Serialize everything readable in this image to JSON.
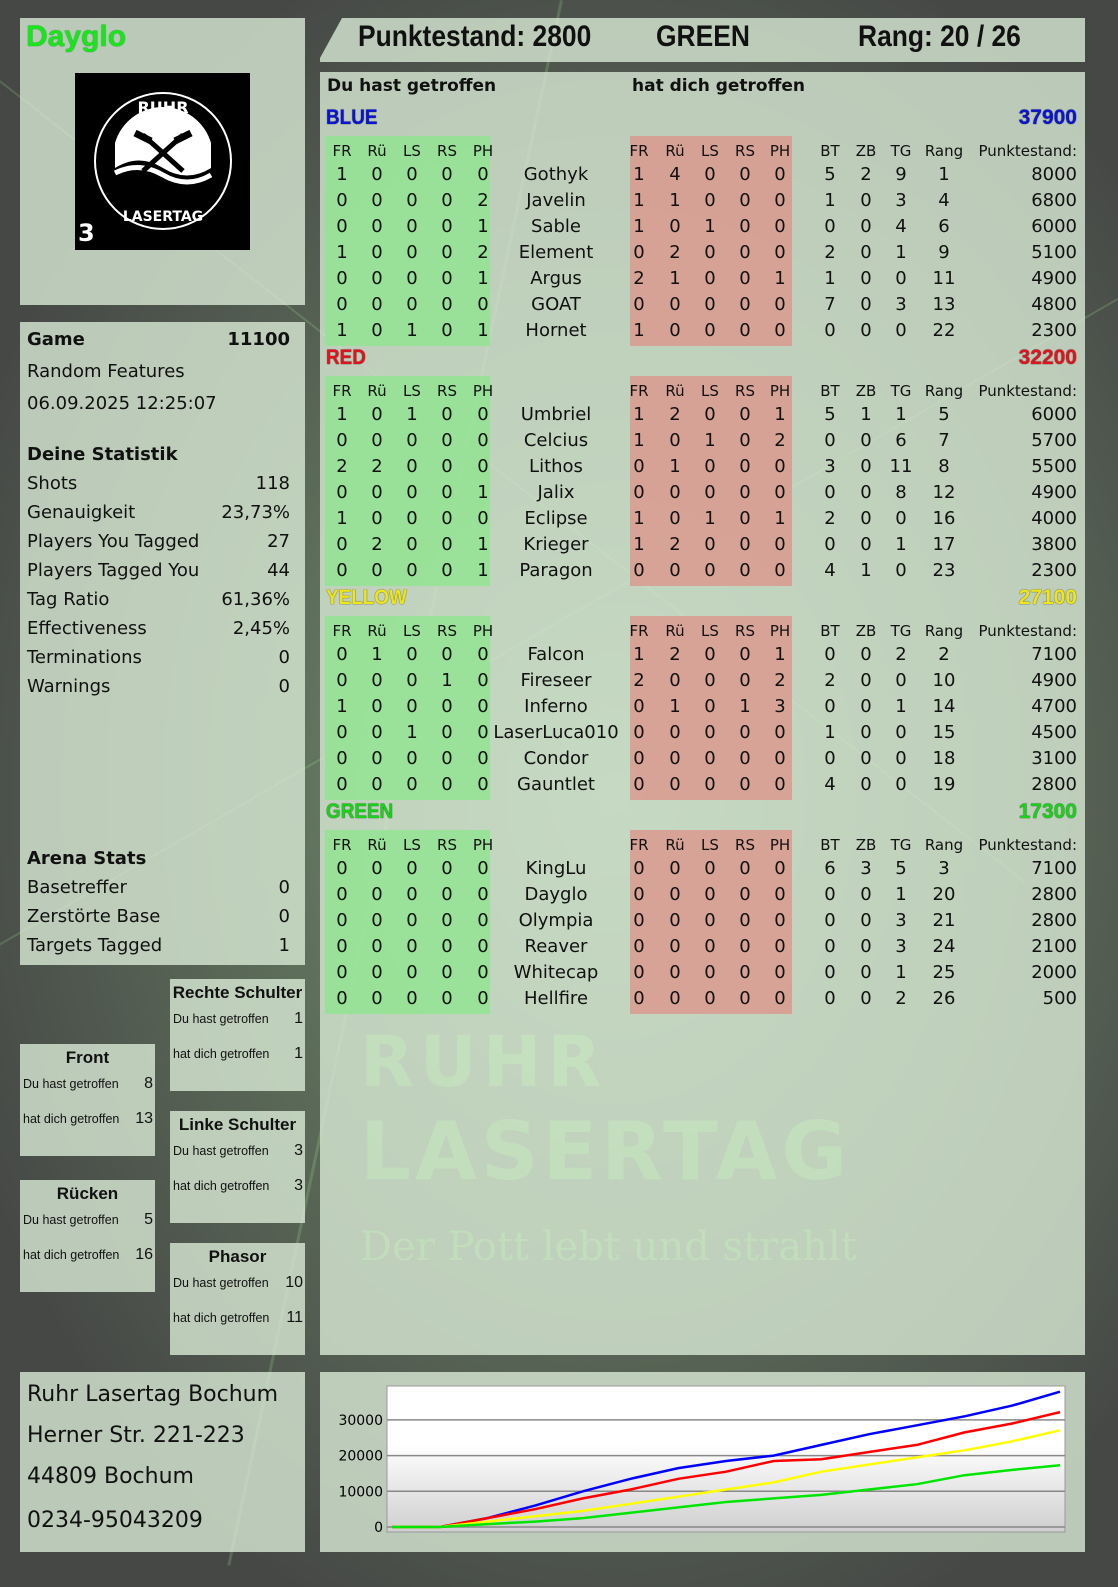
{
  "header": {
    "score_label": "Punktestand: 2800",
    "team": "GREEN",
    "rank_label": "Rang: 20 / 26"
  },
  "player": {
    "name": "Dayglo",
    "name_color": "#19e619",
    "logo_text": [
      "RUHR",
      "LASERTAG"
    ],
    "logo_badge": "3"
  },
  "game": {
    "label": "Game",
    "id": "11100",
    "mode": "Random Features",
    "datetime": "06.09.2025 12:25:07"
  },
  "my_stats": {
    "title": "Deine Statistik",
    "rows": [
      {
        "label": "Shots",
        "value": "118"
      },
      {
        "label": "Genauigkeit",
        "value": "23,73%"
      },
      {
        "label": "Players You Tagged",
        "value": "27"
      },
      {
        "label": "Players Tagged You",
        "value": "44"
      },
      {
        "label": "Tag Ratio",
        "value": "61,36%"
      },
      {
        "label": "Effectiveness",
        "value": "2,45%"
      },
      {
        "label": "Terminations",
        "value": "0"
      },
      {
        "label": "Warnings",
        "value": "0"
      }
    ]
  },
  "arena_stats": {
    "title": "Arena Stats",
    "rows": [
      {
        "label": "Basetreffer",
        "value": "0"
      },
      {
        "label": "Zerstörte Base",
        "value": "0"
      },
      {
        "label": "Targets Tagged",
        "value": "1"
      }
    ]
  },
  "hit_zones": [
    {
      "title": "Rechte Schulter",
      "you_hit_label": "Du hast getroffen",
      "you_hit": "1",
      "hit_you_label": "hat dich getroffen",
      "hit_you": "1"
    },
    {
      "title": "Front",
      "you_hit_label": "Du hast getroffen",
      "you_hit": "8",
      "hit_you_label": "hat dich getroffen",
      "hit_you": "13"
    },
    {
      "title": "Linke Schulter",
      "you_hit_label": "Du hast getroffen",
      "you_hit": "3",
      "hit_you_label": "hat dich getroffen",
      "hit_you": "3"
    },
    {
      "title": "Rücken",
      "you_hit_label": "Du hast getroffen",
      "you_hit": "5",
      "hit_you_label": "hat dich getroffen",
      "hit_you": "16"
    },
    {
      "title": "Phasor",
      "you_hit_label": "Du hast getroffen",
      "you_hit": "10",
      "hit_you_label": "hat dich getroffen",
      "hit_you": "11"
    }
  ],
  "main": {
    "you_hit_heading": "Du hast getroffen",
    "hit_you_heading": "hat dich getroffen",
    "hit_columns": [
      "FR",
      "Rü",
      "LS",
      "RS",
      "PH"
    ],
    "stat_columns": [
      "BT",
      "ZB",
      "TG",
      "Rang"
    ],
    "points_column": "Punktestand:"
  },
  "teams": [
    {
      "name": "BLUE",
      "score": "37900",
      "color": "#0a14d2",
      "players": [
        {
          "name": "Gothyk",
          "hit": [
            "1",
            "0",
            "0",
            "0",
            "0"
          ],
          "got": [
            "1",
            "4",
            "0",
            "0",
            "0"
          ],
          "stats": [
            "5",
            "2",
            "9",
            "1"
          ],
          "points": "8000"
        },
        {
          "name": "Javelin",
          "hit": [
            "0",
            "0",
            "0",
            "0",
            "2"
          ],
          "got": [
            "1",
            "1",
            "0",
            "0",
            "0"
          ],
          "stats": [
            "1",
            "0",
            "3",
            "4"
          ],
          "points": "6800"
        },
        {
          "name": "Sable",
          "hit": [
            "0",
            "0",
            "0",
            "0",
            "1"
          ],
          "got": [
            "1",
            "0",
            "1",
            "0",
            "0"
          ],
          "stats": [
            "0",
            "0",
            "4",
            "6"
          ],
          "points": "6000"
        },
        {
          "name": "Element",
          "hit": [
            "1",
            "0",
            "0",
            "0",
            "2"
          ],
          "got": [
            "0",
            "2",
            "0",
            "0",
            "0"
          ],
          "stats": [
            "2",
            "0",
            "1",
            "9"
          ],
          "points": "5100"
        },
        {
          "name": "Argus",
          "hit": [
            "0",
            "0",
            "0",
            "0",
            "1"
          ],
          "got": [
            "2",
            "1",
            "0",
            "0",
            "1"
          ],
          "stats": [
            "1",
            "0",
            "0",
            "11"
          ],
          "points": "4900"
        },
        {
          "name": "GOAT",
          "hit": [
            "0",
            "0",
            "0",
            "0",
            "0"
          ],
          "got": [
            "0",
            "0",
            "0",
            "0",
            "0"
          ],
          "stats": [
            "7",
            "0",
            "3",
            "13"
          ],
          "points": "4800"
        },
        {
          "name": "Hornet",
          "hit": [
            "1",
            "0",
            "1",
            "0",
            "1"
          ],
          "got": [
            "1",
            "0",
            "0",
            "0",
            "0"
          ],
          "stats": [
            "0",
            "0",
            "0",
            "22"
          ],
          "points": "2300"
        }
      ]
    },
    {
      "name": "RED",
      "score": "32200",
      "color": "#e0141e",
      "players": [
        {
          "name": "Umbriel",
          "hit": [
            "1",
            "0",
            "1",
            "0",
            "0"
          ],
          "got": [
            "1",
            "2",
            "0",
            "0",
            "1"
          ],
          "stats": [
            "5",
            "1",
            "1",
            "5"
          ],
          "points": "6000"
        },
        {
          "name": "Celcius",
          "hit": [
            "0",
            "0",
            "0",
            "0",
            "0"
          ],
          "got": [
            "1",
            "0",
            "1",
            "0",
            "2"
          ],
          "stats": [
            "0",
            "0",
            "6",
            "7"
          ],
          "points": "5700"
        },
        {
          "name": "Lithos",
          "hit": [
            "2",
            "2",
            "0",
            "0",
            "0"
          ],
          "got": [
            "0",
            "1",
            "0",
            "0",
            "0"
          ],
          "stats": [
            "3",
            "0",
            "11",
            "8"
          ],
          "points": "5500"
        },
        {
          "name": "Jalix",
          "hit": [
            "0",
            "0",
            "0",
            "0",
            "1"
          ],
          "got": [
            "0",
            "0",
            "0",
            "0",
            "0"
          ],
          "stats": [
            "0",
            "0",
            "8",
            "12"
          ],
          "points": "4900"
        },
        {
          "name": "Eclipse",
          "hit": [
            "1",
            "0",
            "0",
            "0",
            "0"
          ],
          "got": [
            "1",
            "0",
            "1",
            "0",
            "1"
          ],
          "stats": [
            "2",
            "0",
            "0",
            "16"
          ],
          "points": "4000"
        },
        {
          "name": "Krieger",
          "hit": [
            "0",
            "2",
            "0",
            "0",
            "1"
          ],
          "got": [
            "1",
            "2",
            "0",
            "0",
            "0"
          ],
          "stats": [
            "0",
            "0",
            "1",
            "17"
          ],
          "points": "3800"
        },
        {
          "name": "Paragon",
          "hit": [
            "0",
            "0",
            "0",
            "0",
            "1"
          ],
          "got": [
            "0",
            "0",
            "0",
            "0",
            "0"
          ],
          "stats": [
            "4",
            "1",
            "0",
            "23"
          ],
          "points": "2300"
        }
      ]
    },
    {
      "name": "YELLOW",
      "score": "27100",
      "color": "#f0e614",
      "players": [
        {
          "name": "Falcon",
          "hit": [
            "0",
            "1",
            "0",
            "0",
            "0"
          ],
          "got": [
            "1",
            "2",
            "0",
            "0",
            "1"
          ],
          "stats": [
            "0",
            "0",
            "2",
            "2"
          ],
          "points": "7100"
        },
        {
          "name": "Fireseer",
          "hit": [
            "0",
            "0",
            "0",
            "1",
            "0"
          ],
          "got": [
            "2",
            "0",
            "0",
            "0",
            "2"
          ],
          "stats": [
            "2",
            "0",
            "0",
            "10"
          ],
          "points": "4900"
        },
        {
          "name": "Inferno",
          "hit": [
            "1",
            "0",
            "0",
            "0",
            "0"
          ],
          "got": [
            "0",
            "1",
            "0",
            "1",
            "3"
          ],
          "stats": [
            "0",
            "0",
            "1",
            "14"
          ],
          "points": "4700"
        },
        {
          "name": "LaserLuca010",
          "hit": [
            "0",
            "0",
            "1",
            "0",
            "0"
          ],
          "got": [
            "0",
            "0",
            "0",
            "0",
            "0"
          ],
          "stats": [
            "1",
            "0",
            "0",
            "15"
          ],
          "points": "4500"
        },
        {
          "name": "Condor",
          "hit": [
            "0",
            "0",
            "0",
            "0",
            "0"
          ],
          "got": [
            "0",
            "0",
            "0",
            "0",
            "0"
          ],
          "stats": [
            "0",
            "0",
            "0",
            "18"
          ],
          "points": "3100"
        },
        {
          "name": "Gauntlet",
          "hit": [
            "0",
            "0",
            "0",
            "0",
            "0"
          ],
          "got": [
            "0",
            "0",
            "0",
            "0",
            "0"
          ],
          "stats": [
            "4",
            "0",
            "0",
            "19"
          ],
          "points": "2800"
        }
      ]
    },
    {
      "name": "GREEN",
      "score": "17300",
      "color": "#19d219",
      "players": [
        {
          "name": "KingLu",
          "hit": [
            "0",
            "0",
            "0",
            "0",
            "0"
          ],
          "got": [
            "0",
            "0",
            "0",
            "0",
            "0"
          ],
          "stats": [
            "6",
            "3",
            "5",
            "3"
          ],
          "points": "7100"
        },
        {
          "name": "Dayglo",
          "hit": [
            "0",
            "0",
            "0",
            "0",
            "0"
          ],
          "got": [
            "0",
            "0",
            "0",
            "0",
            "0"
          ],
          "stats": [
            "0",
            "0",
            "1",
            "20"
          ],
          "points": "2800"
        },
        {
          "name": "Olympia",
          "hit": [
            "0",
            "0",
            "0",
            "0",
            "0"
          ],
          "got": [
            "0",
            "0",
            "0",
            "0",
            "0"
          ],
          "stats": [
            "0",
            "0",
            "3",
            "21"
          ],
          "points": "2800"
        },
        {
          "name": "Reaver",
          "hit": [
            "0",
            "0",
            "0",
            "0",
            "0"
          ],
          "got": [
            "0",
            "0",
            "0",
            "0",
            "0"
          ],
          "stats": [
            "0",
            "0",
            "3",
            "24"
          ],
          "points": "2100"
        },
        {
          "name": "Whitecap",
          "hit": [
            "0",
            "0",
            "0",
            "0",
            "0"
          ],
          "got": [
            "0",
            "0",
            "0",
            "0",
            "0"
          ],
          "stats": [
            "0",
            "0",
            "1",
            "25"
          ],
          "points": "2000"
        },
        {
          "name": "Hellfire",
          "hit": [
            "0",
            "0",
            "0",
            "0",
            "0"
          ],
          "got": [
            "0",
            "0",
            "0",
            "0",
            "0"
          ],
          "stats": [
            "0",
            "0",
            "2",
            "26"
          ],
          "points": "500"
        }
      ]
    }
  ],
  "watermark": {
    "line1": "RUHR",
    "line2": "LASERTAG",
    "slogan": "Der Pott lebt und strahlt"
  },
  "address": {
    "name": "Ruhr Lasertag Bochum",
    "street": "Herner Str. 221-223",
    "city": "44809 Bochum",
    "phone": "0234-95043209"
  },
  "chart_data": {
    "type": "line",
    "ylim": [
      -1400,
      39500
    ],
    "yticks": [
      "0",
      "10000",
      "20000",
      "30000"
    ],
    "grid": true,
    "legend": "none",
    "series": [
      {
        "color": "#0000ff",
        "values": [
          0,
          0,
          2500,
          6000,
          10000,
          13500,
          16500,
          18500,
          20000,
          23000,
          26000,
          28500,
          31000,
          34000,
          37900
        ]
      },
      {
        "color": "#ff0000",
        "values": [
          0,
          0,
          2500,
          5000,
          8000,
          10500,
          13500,
          15500,
          18500,
          19000,
          21000,
          23000,
          26500,
          29000,
          32200
        ]
      },
      {
        "color": "#ffff00",
        "values": [
          0,
          0,
          1500,
          3000,
          4500,
          6500,
          8500,
          10500,
          12500,
          15500,
          17500,
          19500,
          21500,
          24000,
          27100
        ]
      },
      {
        "color": "#00e600",
        "values": [
          0,
          0,
          800,
          1500,
          2500,
          4000,
          5500,
          7000,
          8000,
          9000,
          10500,
          12000,
          14500,
          16000,
          17300
        ]
      }
    ]
  }
}
